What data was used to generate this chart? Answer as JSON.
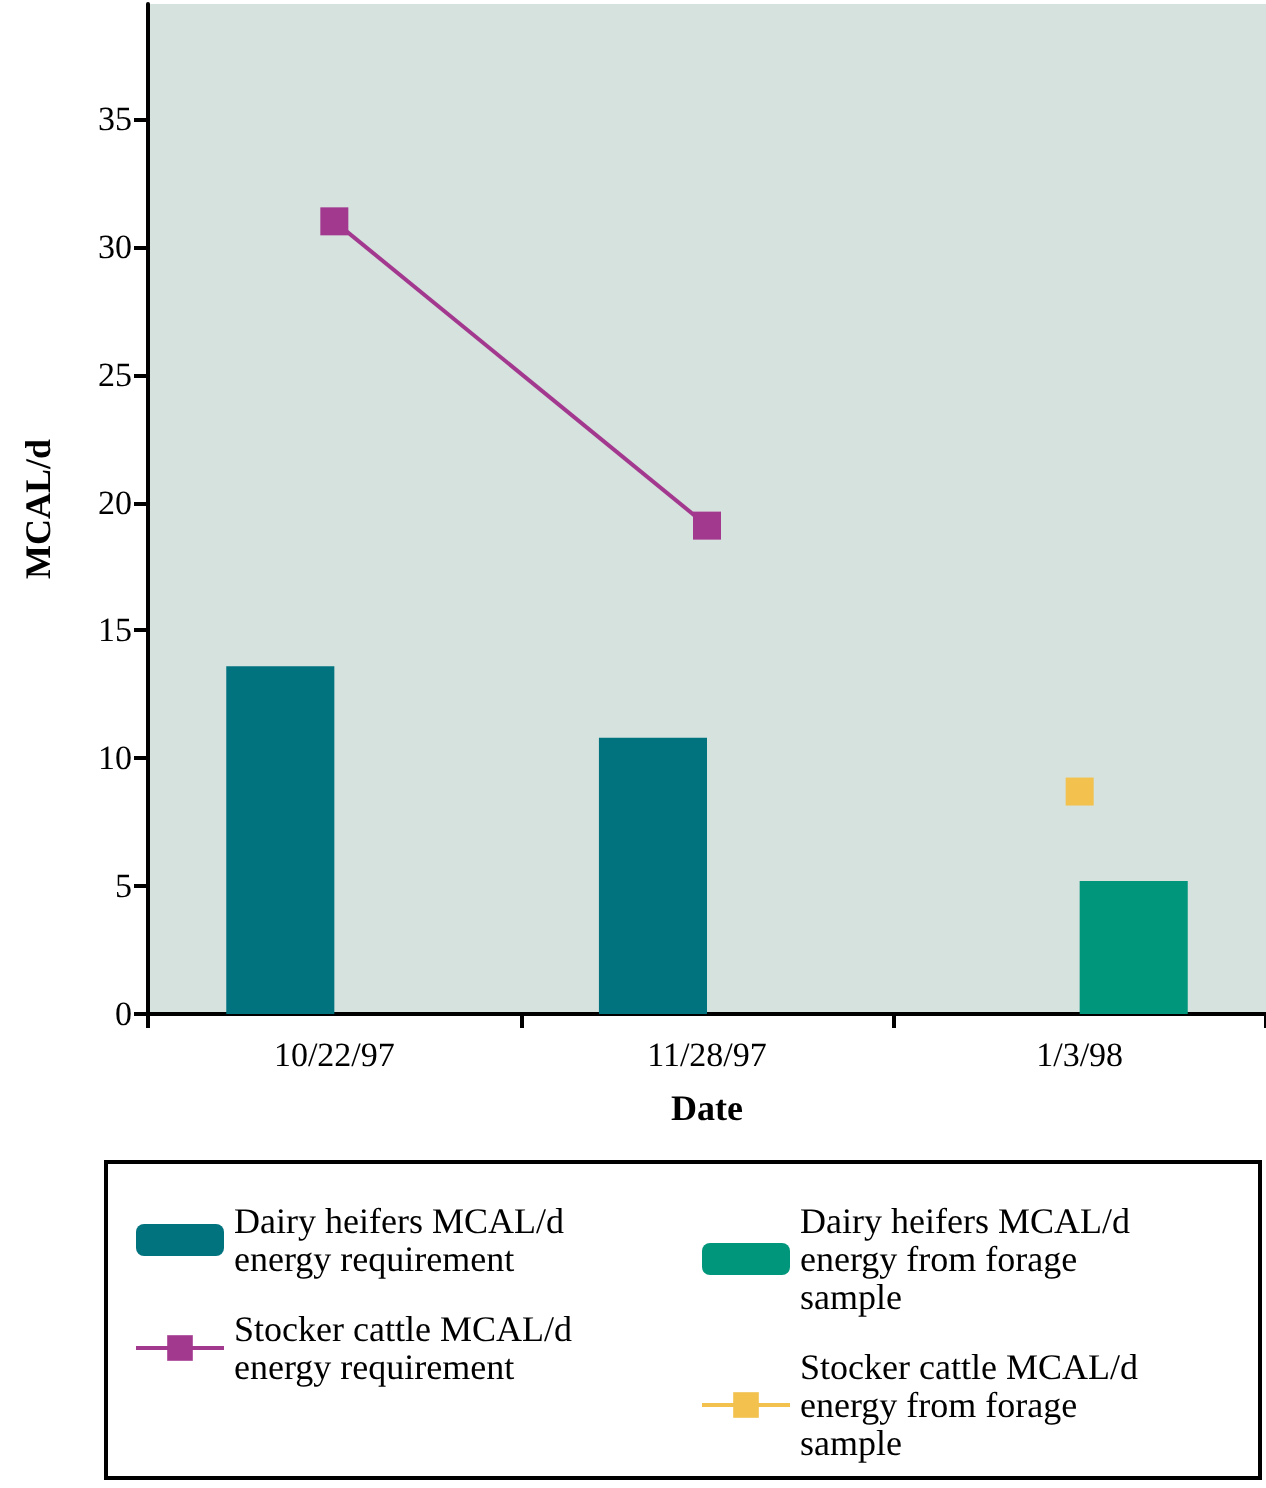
{
  "chart_data": {
    "type": "bar",
    "xlabel": "Date",
    "ylabel": "MCAL/d",
    "categories": [
      "10/22/97",
      "11/28/97",
      "1/3/98"
    ],
    "series": [
      {
        "name": "Dairy heifers MCAL/d energy requirement",
        "color": "#00737f",
        "values": [
          13.6,
          10.8,
          null
        ]
      },
      {
        "name": "Dairy heifers MCAL/d energy from forage sample",
        "color": "#00967b",
        "values": [
          null,
          null,
          5.2
        ]
      },
      {
        "name": "Stocker cattle MCAL/d energy requirement",
        "type": "line",
        "color": "#a3388f",
        "values": [
          31,
          19.1,
          null
        ]
      },
      {
        "name": "Stocker cattle MCAL/d energy from forage sample",
        "type": "line",
        "color": "#f2c14e",
        "values": [
          null,
          null,
          8.7
        ]
      }
    ],
    "ylim": [
      0,
      39.5
    ],
    "yticks": [
      0,
      5,
      10,
      15,
      20,
      25,
      30,
      35
    ],
    "grid": false,
    "legend": "bottom",
    "marker": "square",
    "line_style": "solid"
  }
}
